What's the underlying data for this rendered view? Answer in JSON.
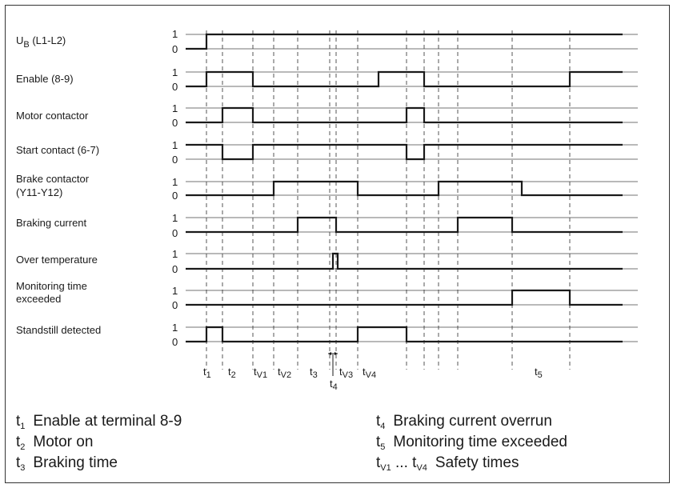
{
  "signals": [
    {
      "id": "ub",
      "label": "U",
      "label_sub": "B",
      "label_rest": " (L1-L2)",
      "levels": [
        "1",
        "0"
      ]
    },
    {
      "id": "enable",
      "label": "Enable (8-9)",
      "levels": [
        "1",
        "0"
      ]
    },
    {
      "id": "motor",
      "label": "Motor contactor",
      "levels": [
        "1",
        "0"
      ]
    },
    {
      "id": "start",
      "label": "Start contact (6-7)",
      "levels": [
        "1",
        "0"
      ]
    },
    {
      "id": "brake",
      "label": "Brake contactor",
      "label2": "(Y11-Y12)",
      "levels": [
        "1",
        "0"
      ]
    },
    {
      "id": "bcur",
      "label": "Braking current",
      "levels": [
        "1",
        "0"
      ]
    },
    {
      "id": "otemp",
      "label": "Over temperature",
      "levels": [
        "1",
        "0"
      ]
    },
    {
      "id": "mon",
      "label": "Monitoring time",
      "label2": "exceeded",
      "levels": [
        "1",
        "0"
      ]
    },
    {
      "id": "stand",
      "label": "Standstill detected",
      "levels": [
        "1",
        "0"
      ]
    }
  ],
  "time_labels": [
    {
      "id": "t1",
      "base": "t",
      "sub": "1"
    },
    {
      "id": "t2",
      "base": "t",
      "sub": "2"
    },
    {
      "id": "tv1",
      "base": "t",
      "sub": "V1"
    },
    {
      "id": "tv2",
      "base": "t",
      "sub": "V2"
    },
    {
      "id": "t3",
      "base": "t",
      "sub": "3"
    },
    {
      "id": "tv3",
      "base": "t",
      "sub": "V3"
    },
    {
      "id": "tv4",
      "base": "t",
      "sub": "V4"
    },
    {
      "id": "t4",
      "base": "t",
      "sub": "4"
    },
    {
      "id": "t5",
      "base": "t",
      "sub": "5"
    }
  ],
  "legend": [
    {
      "id": "t1",
      "sym": "t",
      "sub": "1",
      "text": "Enable at terminal 8-9"
    },
    {
      "id": "t2",
      "sym": "t",
      "sub": "2",
      "text": "Motor on"
    },
    {
      "id": "t3",
      "sym": "t",
      "sub": "3",
      "text": "Braking time"
    },
    {
      "id": "t4",
      "sym": "t",
      "sub": "4",
      "text": "Braking current overrun"
    },
    {
      "id": "t5",
      "sym": "t",
      "sub": "5",
      "text": "Monitoring time exceeded"
    },
    {
      "id": "tv",
      "sym": "t",
      "sub": "V1",
      "mid": " ... ",
      "sym2": "t",
      "sub2": "V4",
      "text": "Safety times"
    }
  ],
  "colors": {
    "line": "#1a1a1a",
    "guide": "#555555"
  }
}
